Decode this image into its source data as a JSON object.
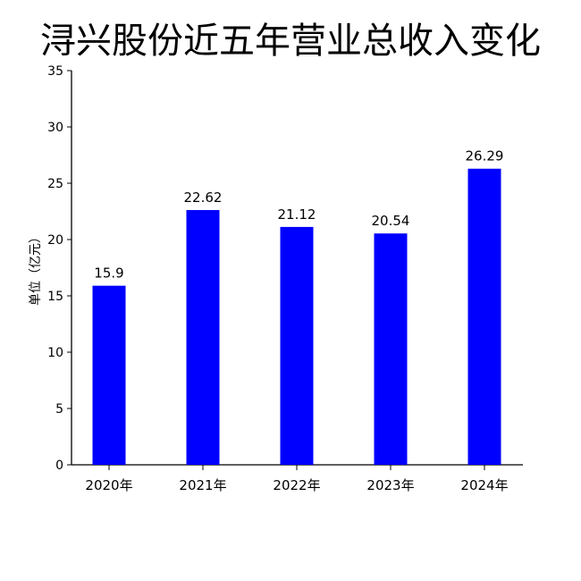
{
  "chart_data": {
    "type": "bar",
    "title": "浔兴股份近五年营业总收入变化",
    "xlabel": "",
    "ylabel": "单位（亿元）",
    "categories": [
      "2020年",
      "2021年",
      "2022年",
      "2023年",
      "2024年"
    ],
    "values": [
      15.9,
      22.62,
      21.12,
      20.54,
      26.29
    ],
    "data_labels": [
      "15.9",
      "22.62",
      "21.12",
      "20.54",
      "26.29"
    ],
    "ylim": [
      0,
      35
    ],
    "yticks": [
      0,
      5,
      10,
      15,
      20,
      25,
      30,
      35
    ],
    "bar_color": "#0000ff",
    "axis_color": "#000000",
    "grid": false,
    "legend": "none"
  }
}
